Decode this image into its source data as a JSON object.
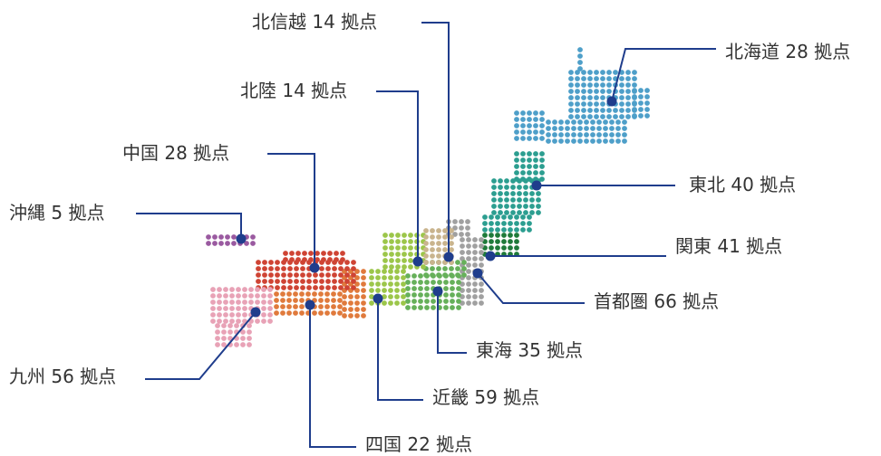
{
  "colors": {
    "leader": "#1f3d8c",
    "text": "#333333",
    "background": "#ffffff"
  },
  "regions": [
    {
      "id": "hokkaido",
      "label": "北海道 28 拠点",
      "color": "#4e9fc9"
    },
    {
      "id": "tohoku",
      "label": "東北 40 拠点",
      "color": "#2c9e90"
    },
    {
      "id": "kanto",
      "label": "関東 41 拠点",
      "color": "#1f7a3a"
    },
    {
      "id": "shutoken",
      "label": "首都圏 66 拠点",
      "color": "#a0a0a0"
    },
    {
      "id": "tokai",
      "label": "東海 35 拠点",
      "color": "#66b05a"
    },
    {
      "id": "kinki",
      "label": "近畿 59 拠点",
      "color": "#9cc64a"
    },
    {
      "id": "shikoku",
      "label": "四国 22 拠点",
      "color": "#e07a3c"
    },
    {
      "id": "kyushu",
      "label": "九州 56 拠点",
      "color": "#e8a2b6"
    },
    {
      "id": "okinawa",
      "label": "沖縄 5 拠点",
      "color": "#9a5aa0"
    },
    {
      "id": "chugoku",
      "label": "中国 28 拠点",
      "color": "#cf4434"
    },
    {
      "id": "hokuriku",
      "label": "北陸 14 拠点",
      "color": "#cdc94a"
    },
    {
      "id": "hokushinetsu",
      "label": "北信越 14 拠点",
      "color": "#c9b48e"
    }
  ]
}
